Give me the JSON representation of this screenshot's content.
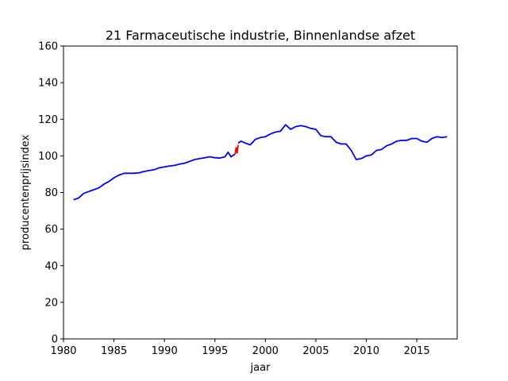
{
  "chart_data": {
    "type": "line",
    "title": "21 Farmaceutische industrie, Binnenlandse afzet",
    "xlabel": "jaar",
    "ylabel": "producentenprijsindex",
    "xlim": [
      1980,
      2019
    ],
    "ylim": [
      0,
      160
    ],
    "xticks": [
      1980,
      1985,
      1990,
      1995,
      2000,
      2005,
      2010,
      2015
    ],
    "yticks": [
      0,
      20,
      40,
      60,
      80,
      100,
      120,
      140,
      160
    ],
    "grid": false,
    "series": [
      {
        "color": "#0000ff",
        "x": [
          1981.0,
          1981.5,
          1982.0,
          1982.5,
          1983.0,
          1983.5,
          1984.0,
          1984.5,
          1985.0,
          1985.5,
          1986.0,
          1986.5,
          1987.0,
          1987.5,
          1988.0,
          1988.5,
          1989.0,
          1989.5,
          1990.0,
          1990.5,
          1991.0,
          1991.5,
          1992.0,
          1992.5,
          1993.0,
          1993.5,
          1994.0,
          1994.5,
          1995.0,
          1995.5,
          1996.0,
          1996.3,
          1996.6,
          1997.0
        ],
        "y": [
          76,
          77,
          79.5,
          80.5,
          81.5,
          82.5,
          84.5,
          86,
          88,
          89.5,
          90.5,
          90.5,
          90.5,
          90.8,
          91.5,
          92,
          92.5,
          93.5,
          94,
          94.5,
          94.8,
          95.5,
          96,
          97,
          98,
          98.5,
          99,
          99.5,
          99,
          98.8,
          99.5,
          102,
          99.5,
          101
        ]
      },
      {
        "color": "#ff0000",
        "x": [
          1997.0,
          1997.1,
          1997.2,
          1997.3
        ],
        "y": [
          101,
          104.5,
          101.5,
          106
        ]
      },
      {
        "color": "#0000ff",
        "x": [
          1997.3,
          1997.6,
          1998.0,
          1998.5,
          1999.0,
          1999.5,
          2000.0,
          2000.5,
          2001.0,
          2001.5,
          2002.0,
          2002.5,
          2003.0,
          2003.5,
          2004.0,
          2004.5,
          2005.0,
          2005.5,
          2006.0,
          2006.5,
          2007.0,
          2007.5,
          2008.0,
          2008.5,
          2009.0,
          2009.5,
          2010.0,
          2010.5,
          2011.0,
          2011.5,
          2012.0,
          2012.5,
          2013.0,
          2013.5,
          2014.0,
          2014.5,
          2015.0,
          2015.5,
          2016.0,
          2016.5,
          2017.0,
          2017.5,
          2018.0
        ],
        "y": [
          107,
          108,
          107,
          106,
          109,
          110,
          110.5,
          112,
          113,
          113.5,
          117,
          114.5,
          116,
          116.5,
          116,
          115,
          114.5,
          111,
          110.5,
          110.5,
          107.5,
          106.5,
          106.5,
          103,
          98,
          98.5,
          100,
          100.5,
          103,
          103.5,
          105.5,
          106.5,
          108,
          108.5,
          108.5,
          109.5,
          109.5,
          108,
          107.5,
          109.5,
          110.5,
          110,
          110.5
        ]
      }
    ]
  }
}
